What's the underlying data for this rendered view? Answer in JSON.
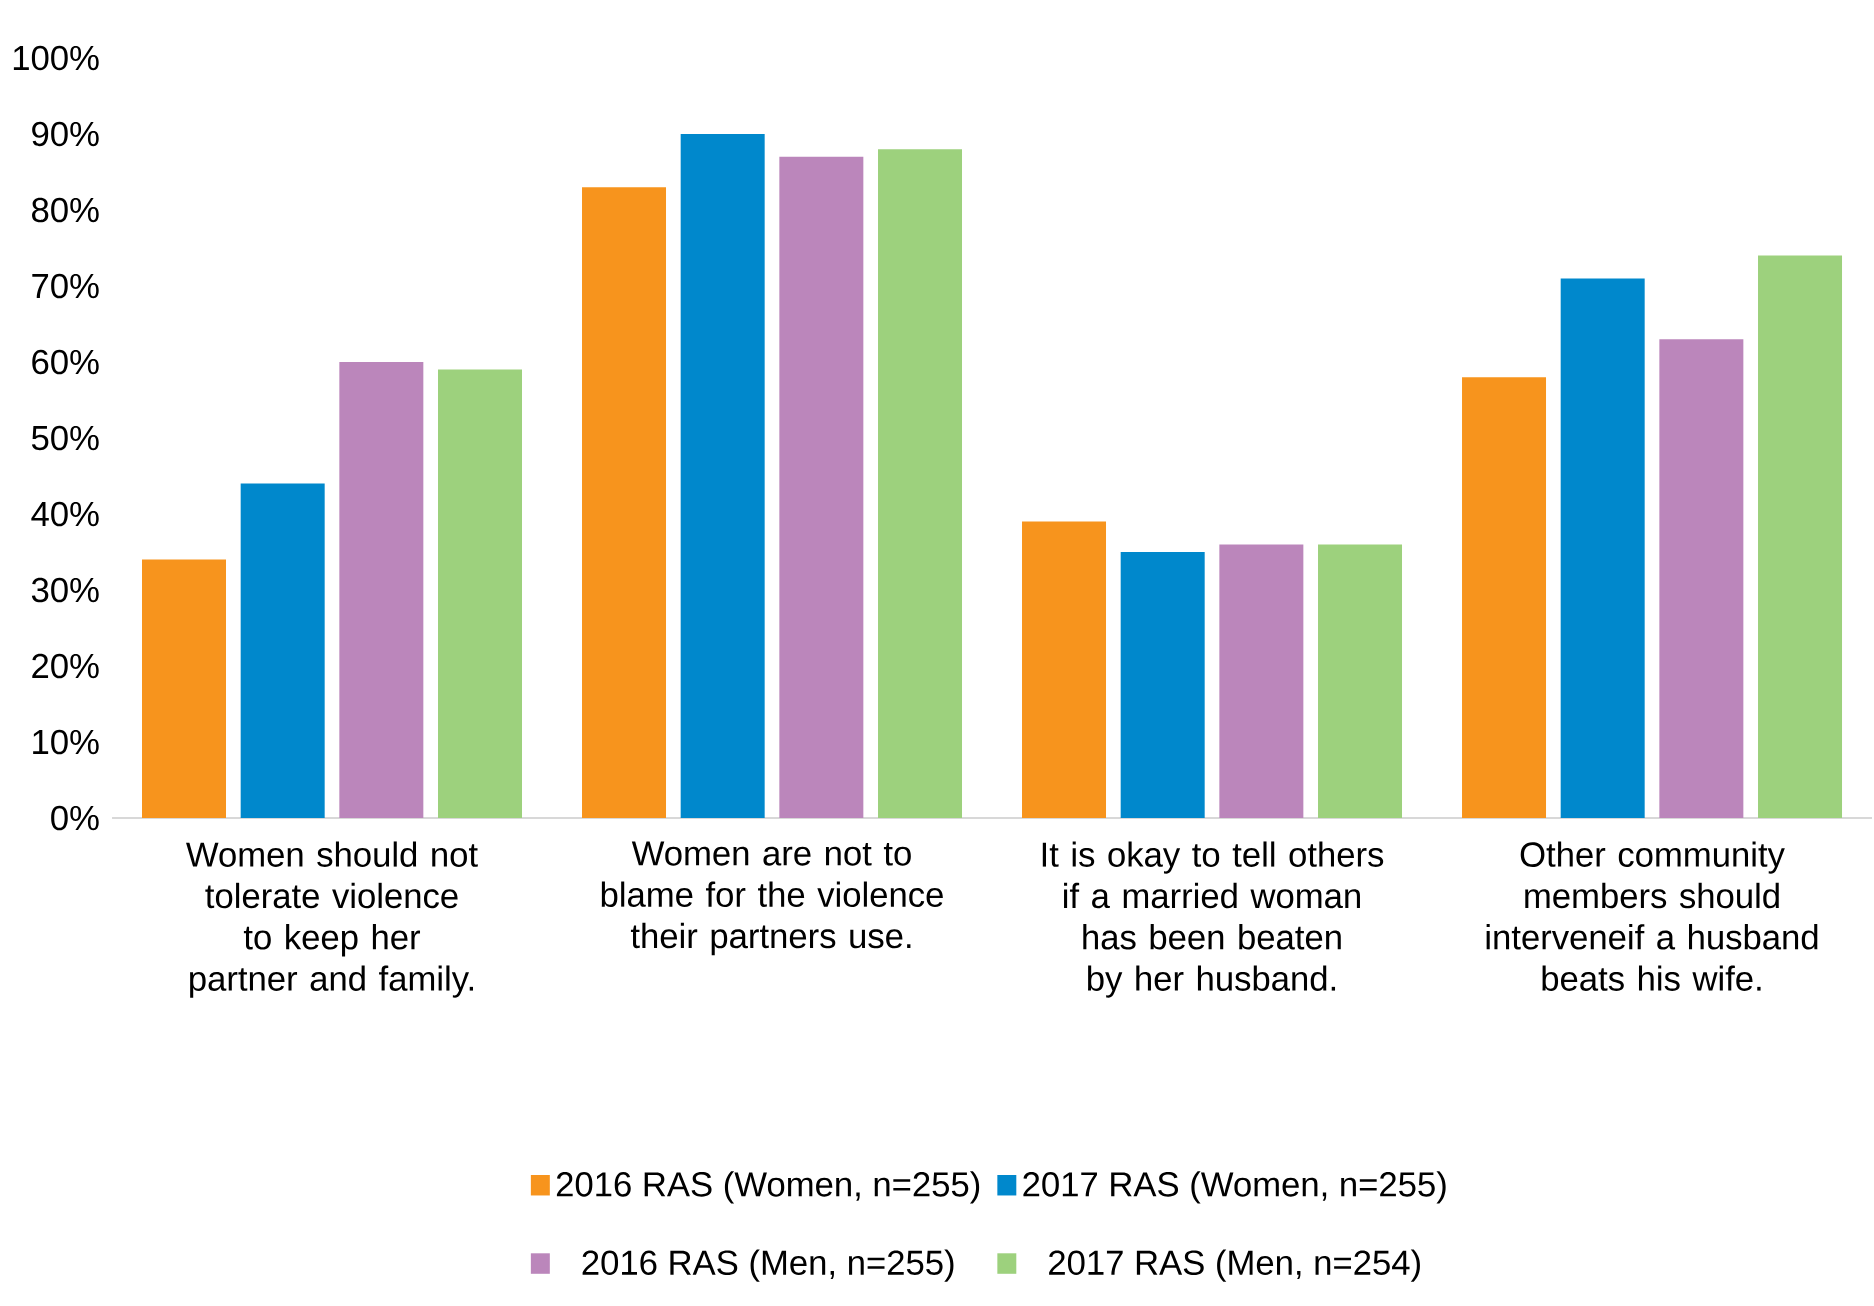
{
  "chart_data": {
    "type": "bar",
    "categories": [
      "Women should not tolerate violence to keep her partner and family.",
      "Women are not to blame for the violence their partners use.",
      "It is okay to tell others if a married woman has been beaten by her husband.",
      "Other community members should interveneif a husband beats his wife."
    ],
    "series": [
      {
        "name": "2016 RAS (Women, n=255)",
        "color": "#f7941d",
        "values": [
          34,
          83,
          39,
          58
        ]
      },
      {
        "name": "2017 RAS (Women, n=255)",
        "color": "#0088cc",
        "values": [
          44,
          90,
          35,
          71
        ]
      },
      {
        "name": "2016 RAS (Men, n=255)",
        "color": "#bb86bb",
        "values": [
          60,
          87,
          36,
          63
        ]
      },
      {
        "name": "2017 RAS (Men, n=254)",
        "color": "#9dd17d",
        "values": [
          59,
          88,
          36,
          74
        ]
      }
    ],
    "ylim": [
      0,
      100
    ],
    "yticks": [
      {
        "value": 0,
        "label": "0%"
      },
      {
        "value": 10,
        "label": "10%"
      },
      {
        "value": 20,
        "label": "20%"
      },
      {
        "value": 30,
        "label": "30%"
      },
      {
        "value": 40,
        "label": "40%"
      },
      {
        "value": 50,
        "label": "50%"
      },
      {
        "value": 60,
        "label": "60%"
      },
      {
        "value": 70,
        "label": "70%"
      },
      {
        "value": 80,
        "label": "80%"
      },
      {
        "value": 90,
        "label": "90%"
      },
      {
        "value": 100,
        "label": "100%"
      }
    ],
    "legend": "bottom"
  }
}
